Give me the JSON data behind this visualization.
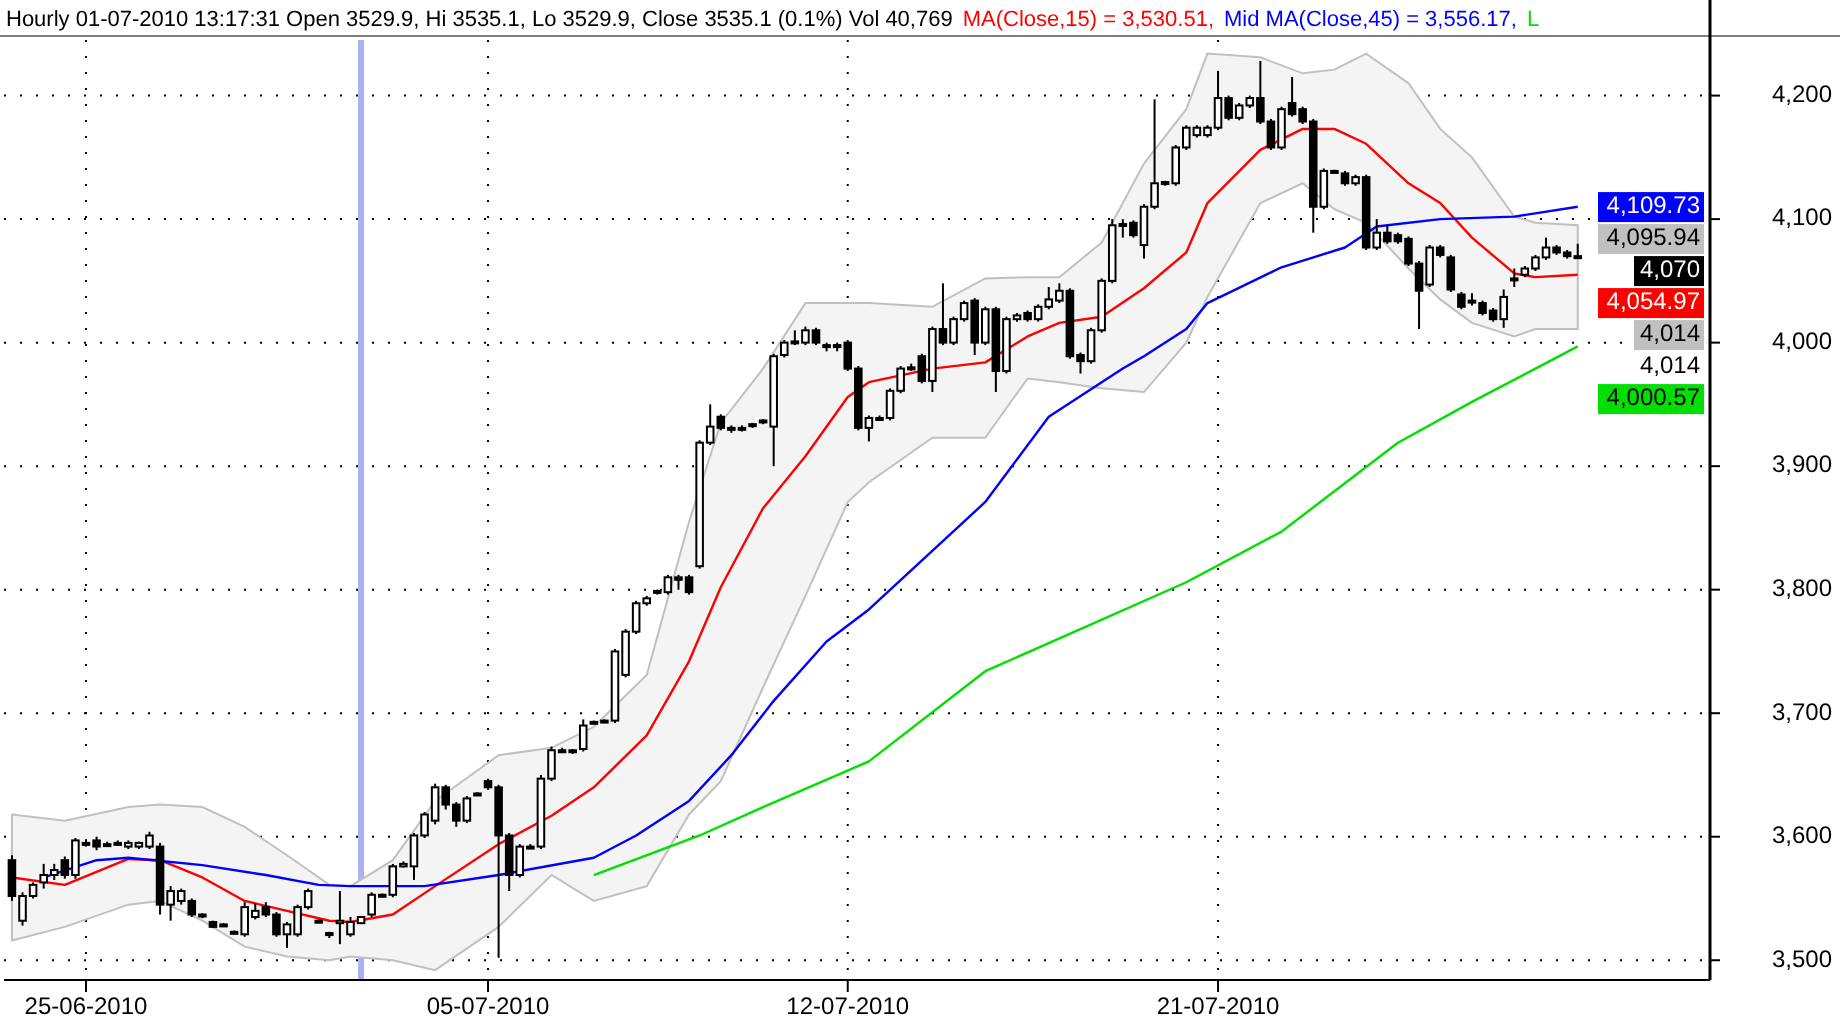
{
  "chart_data": {
    "type": "candlestick",
    "title": "Hourly 01-07-2010 13:17:31 Open 3529.9, Hi 3535.1, Lo 3529.9, Close 3535.1 (0.1%) Vol 40,769",
    "legend": "top",
    "grid": true,
    "categories": [
      null,
      null,
      null,
      null,
      null,
      null,
      null,
      "25-06-2010",
      null,
      null,
      null,
      null,
      null,
      null,
      null,
      null,
      null,
      null,
      null,
      null,
      null,
      null,
      null,
      null,
      null,
      null,
      null,
      null,
      null,
      null,
      null,
      null,
      null,
      null,
      null,
      null,
      null,
      null,
      null,
      null,
      null,
      null,
      null,
      null,
      null,
      "05-07-2010",
      null,
      null,
      null,
      null,
      null,
      null,
      null,
      null,
      null,
      null,
      null,
      null,
      null,
      null,
      null,
      null,
      null,
      null,
      null,
      null,
      null,
      null,
      null,
      null,
      null,
      null,
      null,
      null,
      null,
      null,
      null,
      null,
      null,
      "12-07-2010",
      null,
      null,
      null,
      null,
      null,
      null,
      null,
      null,
      null,
      null,
      null,
      null,
      null,
      null,
      null,
      null,
      null,
      null,
      null,
      null,
      null,
      null,
      null,
      null,
      null,
      null,
      null,
      null,
      null,
      null,
      null,
      null,
      null,
      null,
      "21-07-2010",
      null,
      null,
      null,
      null,
      null,
      null,
      null,
      null,
      null,
      null,
      null,
      null,
      null,
      null,
      null,
      null,
      null,
      null,
      null,
      null,
      null,
      null,
      null,
      null,
      null,
      null,
      null,
      null,
      null,
      null,
      null,
      null,
      null,
      null
    ],
    "ylim": [
      3484,
      4245
    ],
    "yticks": [
      {
        "value": 3500,
        "label": "3,500"
      },
      {
        "value": 3600,
        "label": "3,600"
      },
      {
        "value": 3700,
        "label": "3,700"
      },
      {
        "value": 3800,
        "label": "3,800"
      },
      {
        "value": 3900,
        "label": "3,900"
      },
      {
        "value": 4000,
        "label": "4,000"
      },
      {
        "value": 4100,
        "label": "4,100"
      },
      {
        "value": 4200,
        "label": "4,200"
      }
    ],
    "ohlc": [
      [
        3581,
        3585,
        3548,
        3552
      ],
      [
        3532,
        3555,
        3528,
        3552
      ],
      [
        3552,
        3563,
        3550,
        3561
      ],
      [
        3563,
        3578,
        3558,
        3569
      ],
      [
        3569,
        3578,
        3565,
        3573
      ],
      [
        3581,
        3584,
        3566,
        3569
      ],
      [
        3569,
        3599,
        3566,
        3597
      ],
      [
        3595,
        3598,
        3592,
        3594
      ],
      [
        3597,
        3600,
        3589,
        3592
      ],
      [
        3594,
        3596,
        3592,
        3594
      ],
      [
        3595,
        3597,
        3593,
        3595
      ],
      [
        3592,
        3597,
        3590,
        3595
      ],
      [
        3592,
        3596,
        3590,
        3595
      ],
      [
        3592,
        3604,
        3590,
        3601
      ],
      [
        3592,
        3595,
        3537,
        3545
      ],
      [
        3545,
        3560,
        3532,
        3556
      ],
      [
        3548,
        3558,
        3545,
        3556
      ],
      [
        3548,
        3550,
        3535,
        3537
      ],
      [
        3537,
        3538,
        3534,
        3536
      ],
      [
        3531,
        3532,
        3526,
        3527
      ],
      [
        3529,
        3530,
        3527,
        3528
      ],
      [
        3523,
        3524,
        3521,
        3523
      ],
      [
        3521,
        3547,
        3519,
        3543
      ],
      [
        3535,
        3546,
        3533,
        3540
      ],
      [
        3543,
        3547,
        3535,
        3537
      ],
      [
        3537,
        3539,
        3519,
        3521
      ],
      [
        3521,
        3531,
        3510,
        3529
      ],
      [
        3521,
        3545,
        3519,
        3543
      ],
      [
        3543,
        3558,
        3541,
        3556
      ],
      [
        3532,
        3533,
        3530,
        3532
      ],
      [
        3521,
        3523,
        3518,
        3522
      ],
      [
        3530,
        3556,
        3513,
        3532
      ],
      [
        3521,
        3535,
        3519,
        3531
      ],
      [
        3530,
        3535,
        3530,
        3535
      ],
      [
        3537,
        3555,
        3535,
        3553
      ],
      [
        3553,
        3554,
        3551,
        3553
      ],
      [
        3553,
        3578,
        3551,
        3576
      ],
      [
        3576,
        3580,
        3575,
        3578
      ],
      [
        3576,
        3603,
        3565,
        3601
      ],
      [
        3601,
        3620,
        3599,
        3618
      ],
      [
        3613,
        3643,
        3610,
        3640
      ],
      [
        3640,
        3642,
        3622,
        3626
      ],
      [
        3626,
        3628,
        3608,
        3613
      ],
      [
        3613,
        3633,
        3611,
        3631
      ],
      [
        3635,
        3636,
        3633,
        3635
      ],
      [
        3645,
        3647,
        3638,
        3640
      ],
      [
        3640,
        3642,
        3502,
        3601
      ],
      [
        3601,
        3603,
        3556,
        3569
      ],
      [
        3569,
        3594,
        3567,
        3592
      ],
      [
        3592,
        3594,
        3590,
        3592
      ],
      [
        3592,
        3650,
        3590,
        3647
      ],
      [
        3647,
        3673,
        3645,
        3670
      ],
      [
        3670,
        3672,
        3668,
        3670
      ],
      [
        3670,
        3671,
        3667,
        3669
      ],
      [
        3671,
        3695,
        3669,
        3690
      ],
      [
        3693,
        3694,
        3691,
        3693
      ],
      [
        3693,
        3695,
        3692,
        3694
      ],
      [
        3694,
        3752,
        3692,
        3750
      ],
      [
        3731,
        3768,
        3729,
        3766
      ],
      [
        3766,
        3791,
        3764,
        3789
      ],
      [
        3789,
        3795,
        3787,
        3793
      ],
      [
        3798,
        3800,
        3796,
        3799
      ],
      [
        3798,
        3812,
        3796,
        3810
      ],
      [
        3810,
        3812,
        3800,
        3808
      ],
      [
        3810,
        3812,
        3796,
        3798
      ],
      [
        3819,
        3921,
        3817,
        3919
      ],
      [
        3919,
        3950,
        3917,
        3932
      ],
      [
        3940,
        3942,
        3929,
        3931
      ],
      [
        3931,
        3933,
        3927,
        3930
      ],
      [
        3930,
        3933,
        3928,
        3931
      ],
      [
        3933,
        3935,
        3931,
        3934
      ],
      [
        3936,
        3938,
        3934,
        3937
      ],
      [
        3932,
        3991,
        3900,
        3989
      ],
      [
        3990,
        4002,
        3988,
        4000
      ],
      [
        4000,
        4010,
        3998,
        4001
      ],
      [
        4000,
        4013,
        3998,
        4010
      ],
      [
        4010,
        4012,
        3998,
        4000
      ],
      [
        3998,
        4000,
        3993,
        3998
      ],
      [
        3998,
        4000,
        3993,
        3998
      ],
      [
        4000,
        4002,
        3977,
        3979
      ],
      [
        3979,
        3981,
        3929,
        3931
      ],
      [
        3931,
        3941,
        3920,
        3939
      ],
      [
        3939,
        3941,
        3937,
        3939
      ],
      [
        3939,
        3963,
        3937,
        3961
      ],
      [
        3961,
        3981,
        3959,
        3979
      ],
      [
        3979,
        3983,
        3977,
        3980
      ],
      [
        3989,
        3991,
        3967,
        3969
      ],
      [
        3969,
        4013,
        3960,
        4011
      ],
      [
        4011,
        4048,
        3998,
        4000
      ],
      [
        4000,
        4021,
        3998,
        4019
      ],
      [
        4019,
        4034,
        4017,
        4032
      ],
      [
        4034,
        4036,
        3990,
        4000
      ],
      [
        4000,
        4029,
        3998,
        4027
      ],
      [
        4027,
        4029,
        3960,
        3977
      ],
      [
        3977,
        4021,
        3975,
        4019
      ],
      [
        4019,
        4024,
        4017,
        4022
      ],
      [
        4024,
        4026,
        4017,
        4019
      ],
      [
        4019,
        4031,
        4017,
        4029
      ],
      [
        4029,
        4045,
        4027,
        4035
      ],
      [
        4034,
        4048,
        4032,
        4042
      ],
      [
        4042,
        4044,
        3987,
        3989
      ],
      [
        3990,
        3992,
        3975,
        3985
      ],
      [
        3985,
        4012,
        3983,
        4010
      ],
      [
        4010,
        4052,
        4008,
        4050
      ],
      [
        4050,
        4100,
        4048,
        4095
      ],
      [
        4095,
        4100,
        4085,
        4096
      ],
      [
        4097,
        4099,
        4085,
        4087
      ],
      [
        4079,
        4112,
        4068,
        4110
      ],
      [
        4110,
        4197,
        4108,
        4129
      ],
      [
        4129,
        4131,
        4127,
        4130
      ],
      [
        4129,
        4160,
        4127,
        4158
      ],
      [
        4158,
        4176,
        4156,
        4174
      ],
      [
        4168,
        4176,
        4166,
        4174
      ],
      [
        4168,
        4176,
        4166,
        4174
      ],
      [
        4174,
        4220,
        4172,
        4198
      ],
      [
        4198,
        4200,
        4180,
        4182
      ],
      [
        4182,
        4194,
        4180,
        4192
      ],
      [
        4192,
        4200,
        4190,
        4198
      ],
      [
        4198,
        4228,
        4177,
        4179
      ],
      [
        4179,
        4181,
        4156,
        4158
      ],
      [
        4158,
        4191,
        4156,
        4189
      ],
      [
        4194,
        4215,
        4183,
        4185
      ],
      [
        4189,
        4191,
        4177,
        4179
      ],
      [
        4179,
        4181,
        4089,
        4110
      ],
      [
        4110,
        4141,
        4108,
        4139
      ],
      [
        4139,
        4140,
        4137,
        4139
      ],
      [
        4137,
        4139,
        4127,
        4129
      ],
      [
        4129,
        4136,
        4127,
        4134
      ],
      [
        4134,
        4136,
        4075,
        4077
      ],
      [
        4077,
        4100,
        4075,
        4089
      ],
      [
        4089,
        4095,
        4080,
        4082
      ],
      [
        4087,
        4089,
        4080,
        4082
      ],
      [
        4084,
        4086,
        4062,
        4064
      ],
      [
        4064,
        4066,
        4011,
        4042
      ],
      [
        4047,
        4079,
        4045,
        4077
      ],
      [
        4077,
        4079,
        4069,
        4071
      ],
      [
        4069,
        4071,
        4041,
        4043
      ],
      [
        4039,
        4041,
        4027,
        4029
      ],
      [
        4034,
        4040,
        4030,
        4034
      ],
      [
        4032,
        4034,
        4022,
        4024
      ],
      [
        4026,
        4028,
        4017,
        4019
      ],
      [
        4019,
        4043,
        4012,
        4037
      ],
      [
        4052,
        4060,
        4045,
        4052
      ],
      [
        4055,
        4062,
        4053,
        4060
      ],
      [
        4060,
        4071,
        4058,
        4069
      ],
      [
        4069,
        4085,
        4067,
        4077
      ],
      [
        4077,
        4079,
        4071,
        4073
      ],
      [
        4073,
        4075,
        4068,
        4070
      ],
      [
        4070,
        4080,
        4068,
        4070
      ]
    ],
    "series": [
      {
        "type": "line",
        "name": "MA(Close,15) = 3,530.51,",
        "color": "#ff0000",
        "values": [
          3567,
          null,
          null,
          null,
          null,
          3561,
          null,
          null,
          null,
          null,
          null,
          3582,
          null,
          null,
          3581,
          null,
          null,
          null,
          3567,
          null,
          null,
          null,
          3548,
          null,
          null,
          null,
          3540,
          null,
          null,
          null,
          3532,
          null,
          3531,
          null,
          null,
          null,
          3537,
          null,
          null,
          null,
          3560,
          null,
          null,
          null,
          null,
          null,
          3594,
          null,
          null,
          null,
          null,
          3617,
          null,
          null,
          null,
          3640,
          null,
          null,
          null,
          null,
          3682,
          null,
          null,
          null,
          3742,
          null,
          null,
          3802,
          null,
          null,
          null,
          3866,
          null,
          null,
          null,
          3908,
          null,
          null,
          null,
          3956,
          null,
          3968,
          null,
          null,
          null,
          null,
          null,
          3979,
          null,
          null,
          null,
          null,
          3984,
          null,
          null,
          null,
          4005,
          null,
          null,
          4016,
          null,
          null,
          null,
          4021,
          null,
          null,
          null,
          4044,
          null,
          null,
          null,
          4073,
          null,
          4113,
          null,
          null,
          null,
          null,
          4156,
          null,
          null,
          null,
          4173,
          null,
          null,
          4173,
          null,
          null,
          4161,
          null,
          null,
          null,
          4129,
          null,
          null,
          4113,
          null,
          null,
          4085,
          null,
          null,
          null,
          4056,
          null,
          4053,
          null,
          null,
          null,
          4055
        ],
        "lower": [
          3516,
          null,
          null,
          null,
          null,
          3527,
          null,
          null,
          null,
          null,
          null,
          3545,
          null,
          null,
          3548,
          null,
          null,
          null,
          3532,
          null,
          null,
          null,
          3511,
          null,
          null,
          null,
          3503,
          null,
          null,
          null,
          3500,
          null,
          3503,
          null,
          null,
          null,
          3500,
          null,
          null,
          null,
          3492,
          null,
          null,
          null,
          null,
          null,
          3527,
          null,
          null,
          null,
          null,
          3569,
          null,
          null,
          null,
          3548,
          null,
          null,
          null,
          null,
          3560,
          null,
          null,
          null,
          3618,
          null,
          null,
          3645,
          null,
          null,
          null,
          3721,
          null,
          null,
          null,
          3795,
          null,
          null,
          null,
          3871,
          null,
          3887,
          null,
          null,
          null,
          null,
          null,
          3923,
          null,
          null,
          null,
          null,
          3923,
          null,
          null,
          null,
          3971,
          null,
          null,
          3968,
          null,
          null,
          null,
          3963,
          null,
          null,
          null,
          3960,
          null,
          null,
          null,
          4000,
          null,
          4037,
          null,
          null,
          null,
          null,
          4113,
          null,
          null,
          null,
          4129,
          null,
          null,
          4108,
          null,
          null,
          4097,
          null,
          null,
          null,
          4060,
          null,
          null,
          4035,
          null,
          null,
          4016,
          null,
          null,
          null,
          4005,
          null,
          4011,
          null,
          null,
          null,
          4011
        ],
        "upper": [
          3618,
          null,
          null,
          null,
          null,
          3613,
          null,
          null,
          null,
          null,
          null,
          3624,
          null,
          null,
          3626,
          null,
          null,
          null,
          3624,
          null,
          null,
          null,
          3608,
          null,
          null,
          null,
          3585,
          null,
          null,
          null,
          3561,
          null,
          3560,
          null,
          null,
          null,
          3581,
          null,
          null,
          null,
          3629,
          null,
          null,
          null,
          null,
          null,
          3666,
          null,
          null,
          null,
          null,
          3672,
          null,
          null,
          null,
          3689,
          null,
          null,
          null,
          null,
          3731,
          null,
          null,
          null,
          3855,
          null,
          null,
          3935,
          null,
          null,
          null,
          3979,
          null,
          null,
          null,
          4032,
          null,
          null,
          null,
          4032,
          null,
          4032,
          null,
          null,
          null,
          null,
          null,
          4029,
          null,
          null,
          null,
          null,
          4052,
          null,
          null,
          null,
          4053,
          null,
          null,
          4053,
          null,
          null,
          null,
          4081,
          null,
          null,
          null,
          4145,
          null,
          null,
          null,
          4189,
          null,
          4234,
          null,
          null,
          null,
          null,
          4231,
          null,
          null,
          null,
          4218,
          null,
          null,
          4221,
          null,
          null,
          4234,
          null,
          null,
          null,
          4210,
          null,
          null,
          4173,
          null,
          null,
          4150,
          null,
          null,
          null,
          4102,
          null,
          4097,
          null,
          null,
          null,
          4095
        ]
      },
      {
        "type": "line",
        "name": "Mid MA(Close,45) = 3,556.17,",
        "color": "#0000ff",
        "values": [
          null,
          null,
          null,
          3567,
          null,
          null,
          null,
          null,
          3581,
          null,
          null,
          3583,
          null,
          null,
          null,
          null,
          null,
          null,
          3577,
          null,
          null,
          null,
          null,
          null,
          3569,
          null,
          null,
          null,
          null,
          3561,
          null,
          null,
          3560,
          null,
          null,
          null,
          null,
          null,
          null,
          3560,
          null,
          null,
          null,
          null,
          null,
          null,
          3569,
          null,
          null,
          null,
          null,
          null,
          null,
          null,
          null,
          3583,
          null,
          null,
          null,
          3601,
          null,
          null,
          null,
          null,
          3629,
          null,
          null,
          null,
          3666,
          null,
          null,
          null,
          3710,
          null,
          null,
          null,
          null,
          3758,
          null,
          null,
          null,
          3784,
          null,
          null,
          null,
          null,
          null,
          null,
          null,
          null,
          null,
          null,
          3871,
          null,
          null,
          null,
          null,
          null,
          3940,
          null,
          null,
          null,
          null,
          null,
          null,
          3979,
          null,
          3989,
          null,
          null,
          null,
          4011,
          null,
          4032,
          null,
          null,
          null,
          null,
          null,
          null,
          4061,
          null,
          null,
          null,
          null,
          null,
          4077,
          null,
          null,
          4094,
          null,
          null,
          null,
          null,
          null,
          4100,
          null,
          null,
          null,
          null,
          null,
          null,
          4102,
          null,
          null,
          null,
          null,
          null,
          4110
        ]
      },
      {
        "type": "line",
        "name": "L",
        "color": "#00e000",
        "values": [
          null,
          null,
          null,
          null,
          null,
          null,
          null,
          null,
          null,
          null,
          null,
          null,
          null,
          null,
          null,
          null,
          null,
          null,
          null,
          null,
          null,
          null,
          null,
          null,
          null,
          null,
          null,
          null,
          null,
          null,
          null,
          null,
          null,
          null,
          null,
          null,
          null,
          null,
          null,
          null,
          null,
          null,
          null,
          null,
          null,
          null,
          null,
          null,
          null,
          null,
          null,
          null,
          null,
          null,
          null,
          3569,
          null,
          null,
          null,
          null,
          null,
          null,
          null,
          null,
          null,
          3601,
          null,
          null,
          null,
          null,
          null,
          3624,
          null,
          null,
          null,
          null,
          null,
          null,
          null,
          null,
          null,
          3661,
          null,
          null,
          null,
          null,
          null,
          null,
          null,
          null,
          null,
          null,
          3734,
          null,
          null,
          null,
          null,
          null,
          null,
          null,
          null,
          null,
          null,
          null,
          null,
          null,
          null,
          null,
          null,
          null,
          null,
          3806,
          null,
          null,
          null,
          null,
          null,
          null,
          null,
          null,
          3847,
          null,
          null,
          null,
          null,
          null,
          null,
          null,
          null,
          null,
          null,
          3919,
          null,
          null,
          null,
          null,
          null,
          null,
          3952,
          null,
          null,
          null,
          null,
          null,
          3979,
          null,
          null,
          null,
          3997
        ]
      }
    ],
    "annotations": [
      "4,109.73",
      "4,095.94",
      "4,070",
      "4,054.97",
      "4,014",
      "4,014",
      "4,000.57"
    ]
  }
}
